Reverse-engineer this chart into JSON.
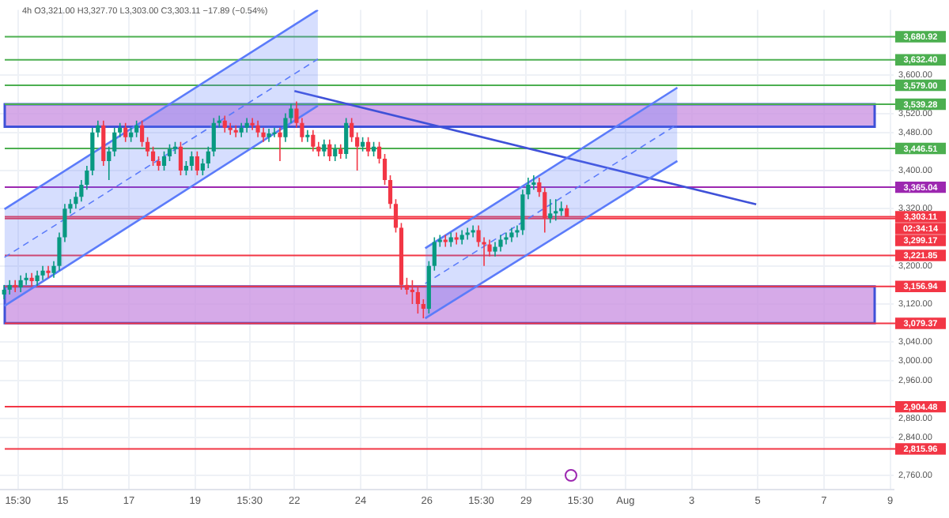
{
  "chart_data": {
    "type": "candlestick",
    "title": "4h O3,321.00 H3,327.70 L3,303.00 C3,303.11 −17.89 (−0.54%)",
    "x": [
      "--07-13T05:30",
      "--07-13T09:30",
      "--07-13T13:30",
      "--07-13T17:30",
      "--07-13T21:30",
      "--07-14T01:30",
      "--07-14T05:30",
      "--07-14T09:30",
      "--07-14T13:30",
      "--07-14T17:30",
      "--07-14T21:30",
      "--07-15T01:30",
      "--07-15T05:30",
      "--07-15T09:30",
      "--07-15T13:30",
      "--07-15T17:30",
      "--07-15T21:30",
      "--07-16T01:30",
      "--07-16T05:30",
      "--07-16T09:30",
      "--07-16T13:30",
      "--07-16T17:30",
      "--07-16T21:30",
      "--07-17T01:30",
      "--07-17T05:30",
      "--07-17T09:30",
      "--07-17T13:30",
      "--07-17T17:30",
      "--07-17T21:30",
      "--07-18T01:30",
      "--07-18T05:30",
      "--07-18T09:30",
      "--07-18T13:30",
      "--07-18T17:30",
      "--07-18T21:30",
      "--07-19T01:30",
      "--07-19T05:30",
      "--07-19T09:30",
      "--07-19T13:30",
      "--07-19T17:30",
      "--07-19T21:30",
      "--07-20T01:30",
      "--07-20T05:30",
      "--07-20T09:30",
      "--07-20T13:30",
      "--07-20T17:30",
      "--07-20T21:30",
      "--07-21T01:30",
      "--07-21T05:30",
      "--07-21T09:30",
      "--07-21T13:30",
      "--07-21T17:30",
      "--07-21T21:30",
      "--07-22T01:30",
      "--07-22T05:30",
      "--07-22T09:30",
      "--07-22T13:30",
      "--07-22T17:30",
      "--07-22T21:30",
      "--07-23T01:30",
      "--07-23T05:30",
      "--07-23T09:30",
      "--07-23T13:30",
      "--07-23T17:30",
      "--07-23T21:30",
      "--07-24T01:30",
      "--07-24T05:30",
      "--07-24T09:30",
      "--07-24T13:30",
      "--07-24T17:30",
      "--07-24T21:30",
      "--07-25T01:30",
      "--07-25T05:30",
      "--07-25T09:30",
      "--07-25T13:30",
      "--07-25T17:30",
      "--07-25T21:30",
      "--07-26T01:30",
      "--07-26T05:30",
      "--07-26T09:30",
      "--07-26T13:30",
      "--07-26T17:30",
      "--07-26T21:30",
      "--07-27T01:30",
      "--07-27T05:30",
      "--07-27T09:30",
      "--07-27T13:30",
      "--07-27T17:30",
      "--07-27T21:30",
      "--07-28T01:30",
      "--07-28T05:30",
      "--07-28T09:30",
      "--07-28T13:30",
      "--07-28T17:30",
      "--07-28T21:30",
      "--07-29T01:30",
      "--07-29T05:30",
      "--07-29T09:30",
      "--07-29T13:30",
      "--07-29T17:30",
      "--07-29T21:30",
      "--07-30T01:30",
      "--07-30T05:30"
    ],
    "ohlc": [
      [
        3140,
        3160,
        3130,
        3150
      ],
      [
        3150,
        3170,
        3140,
        3160
      ],
      [
        3160,
        3170,
        3145,
        3155
      ],
      [
        3155,
        3180,
        3145,
        3170
      ],
      [
        3170,
        3185,
        3160,
        3175
      ],
      [
        3175,
        3185,
        3158,
        3168
      ],
      [
        3168,
        3190,
        3158,
        3180
      ],
      [
        3180,
        3200,
        3170,
        3190
      ],
      [
        3190,
        3200,
        3175,
        3185
      ],
      [
        3185,
        3210,
        3175,
        3200
      ],
      [
        3200,
        3270,
        3190,
        3260
      ],
      [
        3260,
        3330,
        3250,
        3320
      ],
      [
        3320,
        3340,
        3310,
        3330
      ],
      [
        3330,
        3355,
        3320,
        3345
      ],
      [
        3345,
        3380,
        3335,
        3370
      ],
      [
        3370,
        3410,
        3360,
        3400
      ],
      [
        3400,
        3490,
        3390,
        3480
      ],
      [
        3480,
        3505,
        3470,
        3495
      ],
      [
        3495,
        3505,
        3410,
        3420
      ],
      [
        3420,
        3450,
        3380,
        3440
      ],
      [
        3440,
        3490,
        3430,
        3480
      ],
      [
        3480,
        3500,
        3470,
        3490
      ],
      [
        3490,
        3500,
        3460,
        3470
      ],
      [
        3470,
        3490,
        3460,
        3480
      ],
      [
        3480,
        3505,
        3470,
        3495
      ],
      [
        3495,
        3505,
        3450,
        3460
      ],
      [
        3460,
        3470,
        3430,
        3440
      ],
      [
        3440,
        3450,
        3410,
        3420
      ],
      [
        3420,
        3430,
        3400,
        3410
      ],
      [
        3410,
        3440,
        3400,
        3430
      ],
      [
        3430,
        3455,
        3420,
        3445
      ],
      [
        3445,
        3460,
        3435,
        3450
      ],
      [
        3450,
        3460,
        3390,
        3400
      ],
      [
        3400,
        3420,
        3390,
        3410
      ],
      [
        3410,
        3440,
        3400,
        3430
      ],
      [
        3430,
        3440,
        3390,
        3400
      ],
      [
        3400,
        3425,
        3390,
        3415
      ],
      [
        3415,
        3450,
        3405,
        3440
      ],
      [
        3440,
        3510,
        3430,
        3500
      ],
      [
        3500,
        3515,
        3490,
        3505
      ],
      [
        3505,
        3515,
        3480,
        3490
      ],
      [
        3490,
        3500,
        3475,
        3485
      ],
      [
        3485,
        3495,
        3470,
        3480
      ],
      [
        3480,
        3500,
        3470,
        3490
      ],
      [
        3490,
        3510,
        3480,
        3500
      ],
      [
        3500,
        3510,
        3485,
        3495
      ],
      [
        3495,
        3505,
        3470,
        3480
      ],
      [
        3480,
        3490,
        3460,
        3470
      ],
      [
        3470,
        3488,
        3460,
        3478
      ],
      [
        3478,
        3490,
        3470,
        3480
      ],
      [
        3480,
        3490,
        3420,
        3470
      ],
      [
        3470,
        3520,
        3460,
        3510
      ],
      [
        3510,
        3540,
        3500,
        3530
      ],
      [
        3530,
        3545,
        3490,
        3500
      ],
      [
        3500,
        3510,
        3460,
        3470
      ],
      [
        3470,
        3485,
        3460,
        3475
      ],
      [
        3475,
        3485,
        3440,
        3450
      ],
      [
        3450,
        3460,
        3430,
        3440
      ],
      [
        3440,
        3465,
        3430,
        3455
      ],
      [
        3455,
        3465,
        3420,
        3430
      ],
      [
        3430,
        3455,
        3420,
        3445
      ],
      [
        3445,
        3455,
        3425,
        3435
      ],
      [
        3435,
        3510,
        3425,
        3500
      ],
      [
        3500,
        3510,
        3460,
        3470
      ],
      [
        3470,
        3480,
        3400,
        3450
      ],
      [
        3450,
        3470,
        3440,
        3460
      ],
      [
        3460,
        3470,
        3430,
        3440
      ],
      [
        3440,
        3460,
        3430,
        3450
      ],
      [
        3450,
        3460,
        3415,
        3425
      ],
      [
        3425,
        3435,
        3370,
        3380
      ],
      [
        3380,
        3390,
        3320,
        3330
      ],
      [
        3330,
        3340,
        3270,
        3280
      ],
      [
        3280,
        3290,
        3150,
        3160
      ],
      [
        3160,
        3175,
        3140,
        3150
      ],
      [
        3150,
        3170,
        3120,
        3145
      ],
      [
        3145,
        3155,
        3100,
        3120
      ],
      [
        3120,
        3130,
        3090,
        3110
      ],
      [
        3110,
        3210,
        3100,
        3200
      ],
      [
        3200,
        3260,
        3190,
        3250
      ],
      [
        3250,
        3265,
        3240,
        3255
      ],
      [
        3255,
        3265,
        3240,
        3250
      ],
      [
        3250,
        3270,
        3240,
        3260
      ],
      [
        3260,
        3270,
        3245,
        3255
      ],
      [
        3255,
        3275,
        3245,
        3265
      ],
      [
        3265,
        3280,
        3255,
        3270
      ],
      [
        3270,
        3285,
        3260,
        3275
      ],
      [
        3275,
        3285,
        3240,
        3250
      ],
      [
        3250,
        3260,
        3200,
        3245
      ],
      [
        3245,
        3255,
        3220,
        3230
      ],
      [
        3230,
        3250,
        3220,
        3240
      ],
      [
        3240,
        3265,
        3230,
        3255
      ],
      [
        3255,
        3270,
        3245,
        3260
      ],
      [
        3260,
        3280,
        3250,
        3270
      ],
      [
        3270,
        3285,
        3260,
        3275
      ],
      [
        3275,
        3360,
        3265,
        3350
      ],
      [
        3350,
        3385,
        3340,
        3370
      ],
      [
        3370,
        3390,
        3360,
        3375
      ],
      [
        3375,
        3385,
        3345,
        3355
      ],
      [
        3355,
        3365,
        3270,
        3300
      ],
      [
        3300,
        3340,
        3290,
        3310
      ],
      [
        3310,
        3340,
        3295,
        3315
      ],
      [
        3315,
        3335,
        3305,
        3321
      ],
      [
        3321,
        3327.7,
        3303,
        3303.11
      ]
    ],
    "series": [
      {
        "type": "line",
        "x": [
          "--07-13T05:45",
          "--07-22T17:00"
        ],
        "values": [
          3218,
          3634
        ],
        "lower": [
          3116,
          3536
        ],
        "upper": [
          3319,
          3737
        ],
        "color": "#5c7cfa",
        "line_style": "dashed"
      },
      {
        "type": "line",
        "x": [
          "--07-13T05:45",
          "--07-22T17:00"
        ],
        "values": [
          3319,
          3737
        ],
        "color": "#5c7cfa",
        "line_style": "solid"
      },
      {
        "type": "line",
        "x": [
          "--07-13T05:45",
          "--07-22T17:00"
        ],
        "values": [
          3116,
          3536
        ],
        "color": "#5c7cfa",
        "line_style": "solid"
      },
      {
        "type": "line",
        "x": [
          "--07-25T22:50",
          "--08-02T13:40"
        ],
        "values": [
          3163,
          3497
        ],
        "lower": [
          3090,
          3420
        ],
        "upper": [
          3237,
          3574
        ],
        "color": "#5c7cfa",
        "line_style": "dashed"
      },
      {
        "type": "line",
        "x": [
          "--07-25T22:50",
          "--08-02T13:40"
        ],
        "values": [
          3237,
          3574
        ],
        "color": "#5c7cfa",
        "line_style": "solid"
      },
      {
        "type": "line",
        "x": [
          "--07-25T22:50",
          "--08-02T13:40"
        ],
        "values": [
          3090,
          3420
        ],
        "color": "#5c7cfa",
        "line_style": "solid"
      },
      {
        "type": "line",
        "x": [
          "--07-22T00:00",
          "--08-04T22:50"
        ],
        "values": [
          3567,
          3329
        ],
        "color": "#3f51d8",
        "line_style": "solid"
      }
    ],
    "xlim": [
      "--07-13T02:30",
      "--08-09T02:30"
    ],
    "xticks": [
      {
        "value": "--07-13T15:30",
        "label": "15:30"
      },
      {
        "value": "--07-15",
        "label": "15"
      },
      {
        "value": "--07-17",
        "label": "17"
      },
      {
        "value": "--07-19",
        "label": "19"
      },
      {
        "value": "--07-20T15:30",
        "label": "15:30"
      },
      {
        "value": "--07-22",
        "label": "22"
      },
      {
        "value": "--07-24",
        "label": "24"
      },
      {
        "value": "--07-26",
        "label": "26"
      },
      {
        "value": "--07-27T15:30",
        "label": "15:30"
      },
      {
        "value": "--07-29",
        "label": "29"
      },
      {
        "value": "--07-30T15:30",
        "label": "15:30"
      },
      {
        "value": "--08-01",
        "label": "Aug"
      },
      {
        "value": "--08-03",
        "label": "3"
      },
      {
        "value": "--08-05",
        "label": "5"
      },
      {
        "value": "--08-07",
        "label": "7"
      },
      {
        "value": "--08-09",
        "label": "9"
      }
    ],
    "ylim": [
      2730,
      3737
    ],
    "yticks": [
      {
        "value": 3600,
        "label": "3,600.00"
      },
      {
        "value": 3520,
        "label": "3,520.00"
      },
      {
        "value": 3480,
        "label": "3,480.00"
      },
      {
        "value": 3400,
        "label": "3,400.00"
      },
      {
        "value": 3320,
        "label": "3,320.00"
      },
      {
        "value": 3200,
        "label": "3,200.00"
      },
      {
        "value": 3120,
        "label": "3,120.00"
      },
      {
        "value": 3040,
        "label": "3,040.00"
      },
      {
        "value": 3000,
        "label": "3,000.00"
      },
      {
        "value": 2960,
        "label": "2,960.00"
      },
      {
        "value": 2880,
        "label": "2,880.00"
      },
      {
        "value": 2840,
        "label": "2,840.00"
      },
      {
        "value": 2760,
        "label": "2,760.00"
      }
    ],
    "bands": [
      {
        "axis": "y",
        "from": 3492,
        "to": 3539,
        "color": "#c98ee0"
      },
      {
        "axis": "y",
        "from": 3080,
        "to": 3157,
        "color": "#c98ee0"
      }
    ],
    "ref_lines": [
      {
        "axis": "y",
        "value": 3680.92,
        "label": "3,680.92",
        "color": "#4caf50"
      },
      {
        "axis": "y",
        "value": 3632.4,
        "label": "3,632.40",
        "color": "#4caf50"
      },
      {
        "axis": "y",
        "value": 3579,
        "label": "3,579.00",
        "color": "#4caf50"
      },
      {
        "axis": "y",
        "value": 3539.28,
        "label": "3,539.28",
        "color": "#4caf50"
      },
      {
        "axis": "y",
        "value": 3446.51,
        "label": "3,446.51",
        "color": "#4caf50"
      },
      {
        "axis": "y",
        "value": 3365.04,
        "label": "3,365.04",
        "color": "#9c27b0"
      },
      {
        "axis": "y",
        "value": 3303.11,
        "label": "3,303.11",
        "color": "#f23645"
      },
      {
        "axis": "y",
        "value": 3299.17,
        "label": "3,299.17",
        "color": "#f23645"
      },
      {
        "axis": "y",
        "value": 3221.85,
        "label": "3,221.85",
        "color": "#f23645"
      },
      {
        "axis": "y",
        "value": 3156.94,
        "label": "3,156.94",
        "color": "#f23645"
      },
      {
        "axis": "y",
        "value": 3079.37,
        "label": "3,079.37",
        "color": "#f23645"
      },
      {
        "axis": "y",
        "value": 2904.48,
        "label": "2,904.48",
        "color": "#f23645"
      },
      {
        "axis": "y",
        "value": 2815.96,
        "label": "2,815.96",
        "color": "#f23645"
      }
    ],
    "annotations": [
      "02:34:14"
    ],
    "grid": true
  }
}
